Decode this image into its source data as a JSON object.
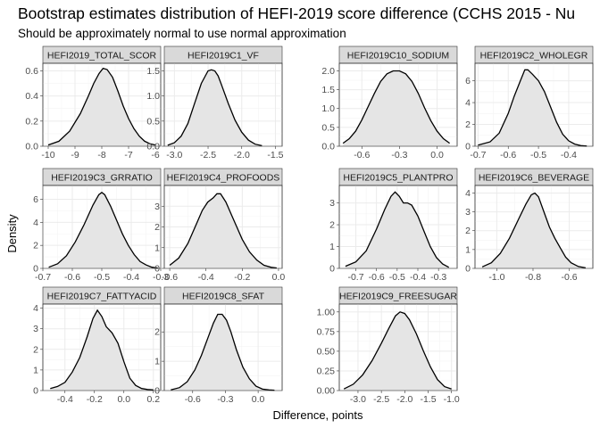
{
  "chart_data": {
    "type": "area",
    "title": "Bootstrap estimates distribution of HEFI-2019 score difference (CCHS 2015 - Nu",
    "subtitle": "Should be approximately normal to use normal approximation",
    "xlabel": "Difference, points",
    "ylabel": "Density",
    "grid": true,
    "legend": "none",
    "line_color": "#000000",
    "fill_color": "#e5e5e5",
    "panels": [
      {
        "label": "HEFI2019_TOTAL_SCOR",
        "xlim": [
          -10.2,
          -5.8
        ],
        "ylim": [
          0,
          0.66
        ],
        "xticks": [
          -10,
          -9,
          -8,
          -7,
          -6
        ],
        "xtick_labels": [
          "-10",
          "-9",
          "-8",
          "-7",
          "-6"
        ],
        "yticks": [
          0,
          0.2,
          0.4,
          0.6
        ],
        "ytick_labels": [
          "0.0",
          "0.2",
          "0.4",
          "0.6"
        ],
        "x": [
          -10.0,
          -9.6,
          -9.2,
          -8.8,
          -8.5,
          -8.3,
          -8.1,
          -7.95,
          -7.8,
          -7.6,
          -7.4,
          -7.2,
          -7.0,
          -6.8,
          -6.6,
          -6.4,
          -6.2,
          -6.0
        ],
        "y": [
          0.01,
          0.04,
          0.12,
          0.26,
          0.4,
          0.5,
          0.58,
          0.62,
          0.61,
          0.55,
          0.44,
          0.32,
          0.22,
          0.14,
          0.08,
          0.04,
          0.02,
          0.01
        ]
      },
      {
        "label": "HEFI2019C1_VF",
        "xlim": [
          -3.15,
          -1.4
        ],
        "ylim": [
          0,
          1.65
        ],
        "xticks": [
          -3.0,
          -2.5,
          -2.0,
          -1.5
        ],
        "xtick_labels": [
          "-3.0",
          "-2.5",
          "-2.0",
          "-1.5"
        ],
        "yticks": [
          0,
          0.5,
          1.0,
          1.5
        ],
        "ytick_labels": [
          "0.0",
          "0.5",
          "1.0",
          "1.5"
        ],
        "x": [
          -3.1,
          -3.0,
          -2.9,
          -2.8,
          -2.7,
          -2.6,
          -2.5,
          -2.45,
          -2.4,
          -2.35,
          -2.3,
          -2.2,
          -2.1,
          -2.0,
          -1.9,
          -1.8,
          -1.7
        ],
        "y": [
          0.02,
          0.07,
          0.2,
          0.45,
          0.85,
          1.25,
          1.5,
          1.52,
          1.5,
          1.4,
          1.22,
          0.85,
          0.52,
          0.28,
          0.12,
          0.04,
          0.01
        ]
      },
      {
        "label": "HEFI2019C10_SODIUM",
        "xlim": [
          -0.78,
          0.16
        ],
        "ylim": [
          0,
          2.2
        ],
        "xticks": [
          -0.6,
          -0.3,
          0.0
        ],
        "xtick_labels": [
          "-0.6",
          "-0.3",
          "0.0"
        ],
        "yticks": [
          0,
          0.5,
          1.0,
          1.5,
          2.0
        ],
        "ytick_labels": [
          "0.0",
          "0.5",
          "1.0",
          "1.5",
          "2.0"
        ],
        "x": [
          -0.75,
          -0.7,
          -0.65,
          -0.6,
          -0.55,
          -0.5,
          -0.45,
          -0.4,
          -0.35,
          -0.3,
          -0.25,
          -0.2,
          -0.15,
          -0.1,
          -0.05,
          0.0,
          0.05,
          0.1
        ],
        "y": [
          0.08,
          0.2,
          0.4,
          0.7,
          1.05,
          1.4,
          1.72,
          1.92,
          2.0,
          2.0,
          1.92,
          1.72,
          1.4,
          1.02,
          0.68,
          0.4,
          0.2,
          0.08
        ]
      },
      {
        "label": "HEFI2019C2_WHOLEGR",
        "xlim": [
          -0.71,
          -0.32
        ],
        "ylim": [
          0,
          7.6
        ],
        "xticks": [
          -0.7,
          -0.6,
          -0.5,
          -0.4
        ],
        "xtick_labels": [
          "-0.7",
          "-0.6",
          "-0.5",
          "-0.4"
        ],
        "yticks": [
          0,
          2,
          4,
          6
        ],
        "ytick_labels": [
          "0",
          "2",
          "4",
          "6"
        ],
        "x": [
          -0.7,
          -0.66,
          -0.63,
          -0.6,
          -0.58,
          -0.56,
          -0.545,
          -0.535,
          -0.52,
          -0.5,
          -0.48,
          -0.46,
          -0.44,
          -0.42,
          -0.4,
          -0.38,
          -0.36,
          -0.34
        ],
        "y": [
          0.1,
          0.4,
          1.2,
          3.0,
          4.6,
          6.0,
          7.0,
          7.0,
          6.6,
          6.0,
          5.0,
          3.6,
          2.2,
          1.1,
          0.5,
          0.2,
          0.06,
          0.02
        ]
      },
      {
        "label": "HEFI2019C3_GRRATIO",
        "xlim": [
          -0.7,
          -0.3
        ],
        "ylim": [
          0,
          7.2
        ],
        "xticks": [
          -0.7,
          -0.6,
          -0.5,
          -0.4,
          -0.3
        ],
        "xtick_labels": [
          "-0.7",
          "-0.6",
          "-0.5",
          "-0.4",
          "-0.3"
        ],
        "yticks": [
          0,
          2,
          4,
          6
        ],
        "ytick_labels": [
          "0",
          "2",
          "4",
          "6"
        ],
        "x": [
          -0.68,
          -0.65,
          -0.62,
          -0.59,
          -0.56,
          -0.53,
          -0.51,
          -0.5,
          -0.49,
          -0.47,
          -0.45,
          -0.43,
          -0.41,
          -0.39,
          -0.37,
          -0.35,
          -0.33,
          -0.31
        ],
        "y": [
          0.1,
          0.4,
          1.1,
          2.3,
          3.8,
          5.5,
          6.4,
          6.6,
          6.4,
          5.4,
          4.2,
          3.0,
          2.0,
          1.2,
          0.6,
          0.3,
          0.1,
          0.03
        ]
      },
      {
        "label": "HEFI2019C4_PROFOODS",
        "xlim": [
          -0.63,
          0.02
        ],
        "ylim": [
          0,
          4.0
        ],
        "xticks": [
          -0.6,
          -0.4,
          -0.2,
          0.0
        ],
        "xtick_labels": [
          "-0.6",
          "-0.4",
          "-0.2",
          "0.0"
        ],
        "yticks": [
          0,
          1,
          2,
          3
        ],
        "ytick_labels": [
          "0",
          "1",
          "2",
          "3"
        ],
        "x": [
          -0.6,
          -0.55,
          -0.5,
          -0.45,
          -0.42,
          -0.39,
          -0.36,
          -0.34,
          -0.32,
          -0.29,
          -0.26,
          -0.23,
          -0.2,
          -0.16,
          -0.12,
          -0.08,
          -0.04,
          -0.01
        ],
        "y": [
          0.15,
          0.5,
          1.2,
          2.2,
          2.8,
          3.2,
          3.4,
          3.6,
          3.6,
          3.2,
          2.6,
          2.0,
          1.4,
          0.8,
          0.4,
          0.15,
          0.05,
          0.02
        ]
      },
      {
        "label": "HEFI2019C5_PLANTPRO",
        "xlim": [
          -0.78,
          -0.21
        ],
        "ylim": [
          0,
          3.8
        ],
        "xticks": [
          -0.7,
          -0.6,
          -0.5,
          -0.4,
          -0.3
        ],
        "xtick_labels": [
          "-0.7",
          "-0.6",
          "-0.5",
          "-0.4",
          "-0.3"
        ],
        "yticks": [
          0,
          1,
          2,
          3
        ],
        "ytick_labels": [
          "0",
          "1",
          "2",
          "3"
        ],
        "x": [
          -0.75,
          -0.7,
          -0.65,
          -0.6,
          -0.56,
          -0.53,
          -0.51,
          -0.49,
          -0.47,
          -0.45,
          -0.43,
          -0.4,
          -0.37,
          -0.34,
          -0.31,
          -0.28,
          -0.25
        ],
        "y": [
          0.1,
          0.3,
          0.8,
          1.8,
          2.7,
          3.3,
          3.5,
          3.3,
          3.0,
          3.0,
          2.9,
          2.4,
          1.7,
          1.0,
          0.5,
          0.2,
          0.05
        ]
      },
      {
        "label": "HEFI2019C6_BEVERAGE",
        "xlim": [
          -1.12,
          -0.47
        ],
        "ylim": [
          0,
          4.4
        ],
        "xticks": [
          -1.0,
          -0.8,
          -0.6
        ],
        "xtick_labels": [
          "-1.0",
          "-0.8",
          "-0.6"
        ],
        "yticks": [
          0,
          1,
          2,
          3,
          4
        ],
        "ytick_labels": [
          "0",
          "1",
          "2",
          "3",
          "4"
        ],
        "x": [
          -1.08,
          -1.03,
          -0.98,
          -0.93,
          -0.88,
          -0.84,
          -0.81,
          -0.79,
          -0.77,
          -0.74,
          -0.71,
          -0.68,
          -0.65,
          -0.62,
          -0.59,
          -0.55,
          -0.51
        ],
        "y": [
          0.08,
          0.3,
          0.8,
          1.6,
          2.6,
          3.4,
          3.9,
          4.0,
          3.8,
          3.0,
          2.2,
          1.6,
          1.1,
          0.6,
          0.3,
          0.1,
          0.03
        ]
      },
      {
        "label": "HEFI2019C7_FATTYACID",
        "xlim": [
          -0.55,
          0.25
        ],
        "ylim": [
          0,
          4.2
        ],
        "xticks": [
          -0.4,
          -0.2,
          0.0,
          0.2
        ],
        "xtick_labels": [
          "-0.4",
          "-0.2",
          "0.0",
          "0.2"
        ],
        "yticks": [
          0,
          1,
          2,
          3,
          4
        ],
        "ytick_labels": [
          "0",
          "1",
          "2",
          "3",
          "4"
        ],
        "x": [
          -0.5,
          -0.45,
          -0.4,
          -0.35,
          -0.3,
          -0.25,
          -0.21,
          -0.18,
          -0.15,
          -0.12,
          -0.08,
          -0.04,
          0.0,
          0.04,
          0.08,
          0.12,
          0.16,
          0.2
        ],
        "y": [
          0.1,
          0.2,
          0.4,
          0.9,
          1.6,
          2.6,
          3.5,
          3.9,
          3.6,
          3.1,
          2.8,
          2.3,
          1.4,
          0.6,
          0.25,
          0.1,
          0.05,
          0.03
        ]
      },
      {
        "label": "HEFI2019C8_SFAT",
        "xlim": [
          -0.86,
          0.22
        ],
        "ylim": [
          0,
          2.95
        ],
        "xticks": [
          -0.6,
          -0.3,
          0.0
        ],
        "xtick_labels": [
          "-0.6",
          "-0.3",
          "0.0"
        ],
        "yticks": [
          0,
          1,
          2
        ],
        "ytick_labels": [
          "0",
          "1",
          "2"
        ],
        "x": [
          -0.8,
          -0.72,
          -0.65,
          -0.58,
          -0.52,
          -0.46,
          -0.41,
          -0.37,
          -0.33,
          -0.29,
          -0.25,
          -0.2,
          -0.14,
          -0.08,
          -0.02,
          0.04,
          0.1,
          0.15
        ],
        "y": [
          0.02,
          0.1,
          0.3,
          0.7,
          1.2,
          1.8,
          2.3,
          2.6,
          2.6,
          2.4,
          2.0,
          1.4,
          0.8,
          0.4,
          0.15,
          0.05,
          0.02,
          0.01
        ]
      },
      {
        "label": "HEFI2019C9_FREESUGAR",
        "xlim": [
          -3.4,
          -0.88
        ],
        "ylim": [
          0,
          1.1
        ],
        "xticks": [
          -3.0,
          -2.5,
          -2.0,
          -1.5,
          -1.0
        ],
        "xtick_labels": [
          "-3.0",
          "-2.5",
          "-2.0",
          "-1.5",
          "-1.0"
        ],
        "yticks": [
          0,
          0.25,
          0.5,
          0.75,
          1.0
        ],
        "ytick_labels": [
          "0.00",
          "0.25",
          "0.50",
          "0.75",
          "1.00"
        ],
        "x": [
          -3.3,
          -3.1,
          -2.9,
          -2.7,
          -2.5,
          -2.35,
          -2.2,
          -2.1,
          -2.0,
          -1.9,
          -1.75,
          -1.6,
          -1.45,
          -1.3,
          -1.15,
          -1.0
        ],
        "y": [
          0.02,
          0.08,
          0.2,
          0.38,
          0.6,
          0.78,
          0.95,
          1.0,
          0.98,
          0.9,
          0.72,
          0.5,
          0.3,
          0.14,
          0.05,
          0.02
        ]
      }
    ]
  }
}
